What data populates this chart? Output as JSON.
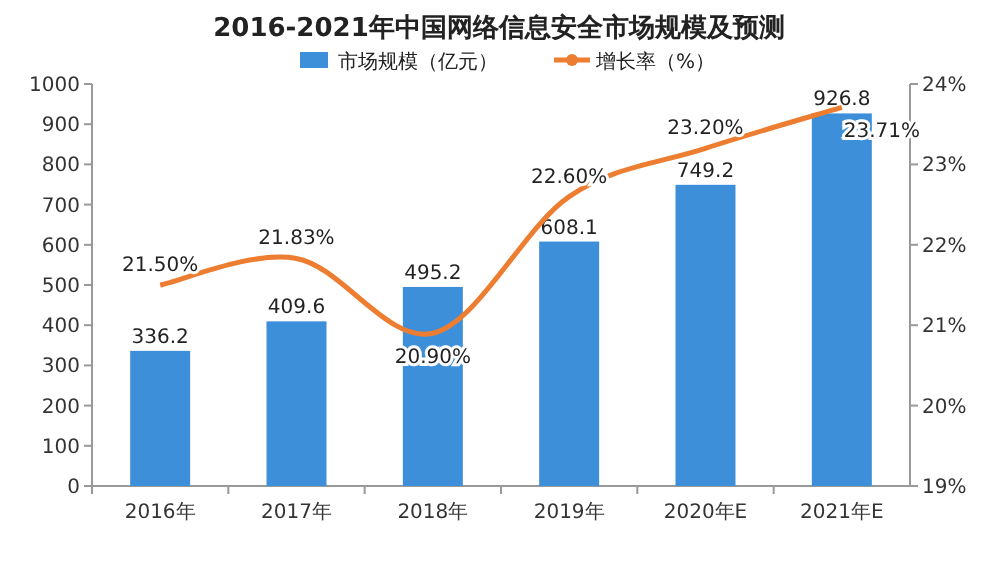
{
  "chart_data": {
    "type": "bar",
    "title": "2016-2021年中国网络信息安全市场规模及预测",
    "categories": [
      "2016年",
      "2017年",
      "2018年",
      "2019年",
      "2020年E",
      "2021年E"
    ],
    "series": [
      {
        "name": "市场规模（亿元）",
        "color": "#3d8fd9",
        "values": [
          336.2,
          409.6,
          495.2,
          608.1,
          749.2,
          926.8
        ],
        "value_labels": [
          "336.2",
          "409.6",
          "495.2",
          "608.1",
          "749.2",
          "926.8"
        ]
      },
      {
        "name": "增长率（%）",
        "type": "line",
        "axis": "y2",
        "color": "#ed7d31",
        "values": [
          21.5,
          21.83,
          20.9,
          22.6,
          23.2,
          23.71
        ],
        "value_labels": [
          "21.50%",
          "21.83%",
          "20.90%",
          "22.60%",
          "23.20%",
          "23.71%"
        ]
      }
    ],
    "ylim": [
      0,
      1000
    ],
    "yticks": [
      0,
      100,
      200,
      300,
      400,
      500,
      600,
      700,
      800,
      900,
      1000
    ],
    "y2lim": [
      19,
      24
    ],
    "y2ticks": [
      {
        "value": 19,
        "label": "19%"
      },
      {
        "value": 20,
        "label": "20%"
      },
      {
        "value": 21,
        "label": "21%"
      },
      {
        "value": 22,
        "label": "22%"
      },
      {
        "value": 23,
        "label": "23%"
      },
      {
        "value": 24,
        "label": "24%"
      }
    ],
    "legend": "top"
  }
}
